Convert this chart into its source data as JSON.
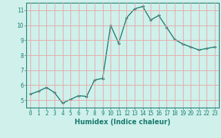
{
  "x": [
    0,
    1,
    2,
    3,
    4,
    5,
    6,
    7,
    8,
    9,
    10,
    11,
    12,
    13,
    14,
    15,
    16,
    17,
    18,
    19,
    20,
    21,
    22,
    23
  ],
  "y": [
    5.4,
    5.6,
    5.85,
    5.5,
    4.8,
    5.05,
    5.3,
    5.25,
    6.35,
    6.45,
    10.0,
    8.8,
    10.5,
    11.1,
    11.25,
    10.35,
    10.65,
    9.85,
    9.05,
    8.75,
    8.55,
    8.35,
    8.45,
    8.55
  ],
  "xlim": [
    -0.5,
    23.5
  ],
  "ylim": [
    4.5,
    11.5
  ],
  "yticks": [
    5,
    6,
    7,
    8,
    9,
    10,
    11
  ],
  "xticks": [
    0,
    1,
    2,
    3,
    4,
    5,
    6,
    7,
    8,
    9,
    10,
    11,
    12,
    13,
    14,
    15,
    16,
    17,
    18,
    19,
    20,
    21,
    22,
    23
  ],
  "xlabel": "Humidex (Indice chaleur)",
  "line_color": "#1a7a6e",
  "marker": "D",
  "marker_size": 1.8,
  "line_width": 1.0,
  "bg_color": "#cff0eb",
  "grid_color": "#e8a0a0",
  "tick_fontsize": 5.5,
  "xlabel_fontsize": 7.0,
  "tick_color": "#1a7a6e"
}
